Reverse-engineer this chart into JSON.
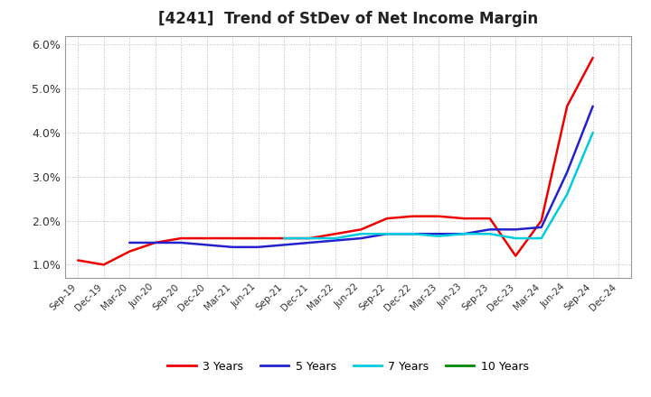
{
  "title": "[4241]  Trend of StDev of Net Income Margin",
  "background_color": "#ffffff",
  "plot_bg_color": "#ffffff",
  "grid_color": "#aaaaaa",
  "ylim": [
    0.007,
    0.062
  ],
  "yticks": [
    0.01,
    0.02,
    0.03,
    0.04,
    0.05,
    0.06
  ],
  "ytick_labels": [
    "1.0%",
    "2.0%",
    "3.0%",
    "4.0%",
    "5.0%",
    "6.0%"
  ],
  "x_labels": [
    "Sep-19",
    "Dec-19",
    "Mar-20",
    "Jun-20",
    "Sep-20",
    "Dec-20",
    "Mar-21",
    "Jun-21",
    "Sep-21",
    "Dec-21",
    "Mar-22",
    "Jun-22",
    "Sep-22",
    "Dec-22",
    "Mar-23",
    "Jun-23",
    "Sep-23",
    "Dec-23",
    "Mar-24",
    "Jun-24",
    "Sep-24",
    "Dec-24"
  ],
  "series": {
    "3 Years": {
      "color": "#ee0000",
      "values": [
        0.011,
        0.01,
        0.013,
        0.015,
        0.016,
        0.016,
        0.016,
        0.016,
        0.016,
        0.016,
        0.017,
        0.018,
        0.0205,
        0.021,
        0.021,
        0.0205,
        0.0205,
        0.012,
        0.02,
        0.046,
        0.057,
        null
      ]
    },
    "5 Years": {
      "color": "#2222cc",
      "values": [
        null,
        null,
        0.015,
        0.015,
        0.015,
        0.0145,
        0.014,
        0.014,
        0.0145,
        0.015,
        0.0155,
        0.016,
        0.017,
        0.017,
        0.017,
        0.017,
        0.018,
        0.018,
        0.0185,
        0.031,
        0.046,
        null
      ]
    },
    "7 Years": {
      "color": "#00ccdd",
      "values": [
        null,
        null,
        null,
        null,
        null,
        null,
        null,
        null,
        0.016,
        0.016,
        0.016,
        0.017,
        0.017,
        0.017,
        0.0165,
        0.017,
        0.017,
        0.016,
        0.016,
        0.026,
        0.04,
        null
      ]
    },
    "10 Years": {
      "color": "#008800",
      "values": [
        null,
        null,
        null,
        null,
        null,
        null,
        null,
        null,
        null,
        null,
        null,
        null,
        null,
        null,
        null,
        null,
        null,
        null,
        null,
        null,
        null,
        null
      ]
    }
  },
  "legend_entries": [
    "3 Years",
    "5 Years",
    "7 Years",
    "10 Years"
  ],
  "legend_colors": [
    "#ee0000",
    "#2222cc",
    "#00ccdd",
    "#008800"
  ]
}
